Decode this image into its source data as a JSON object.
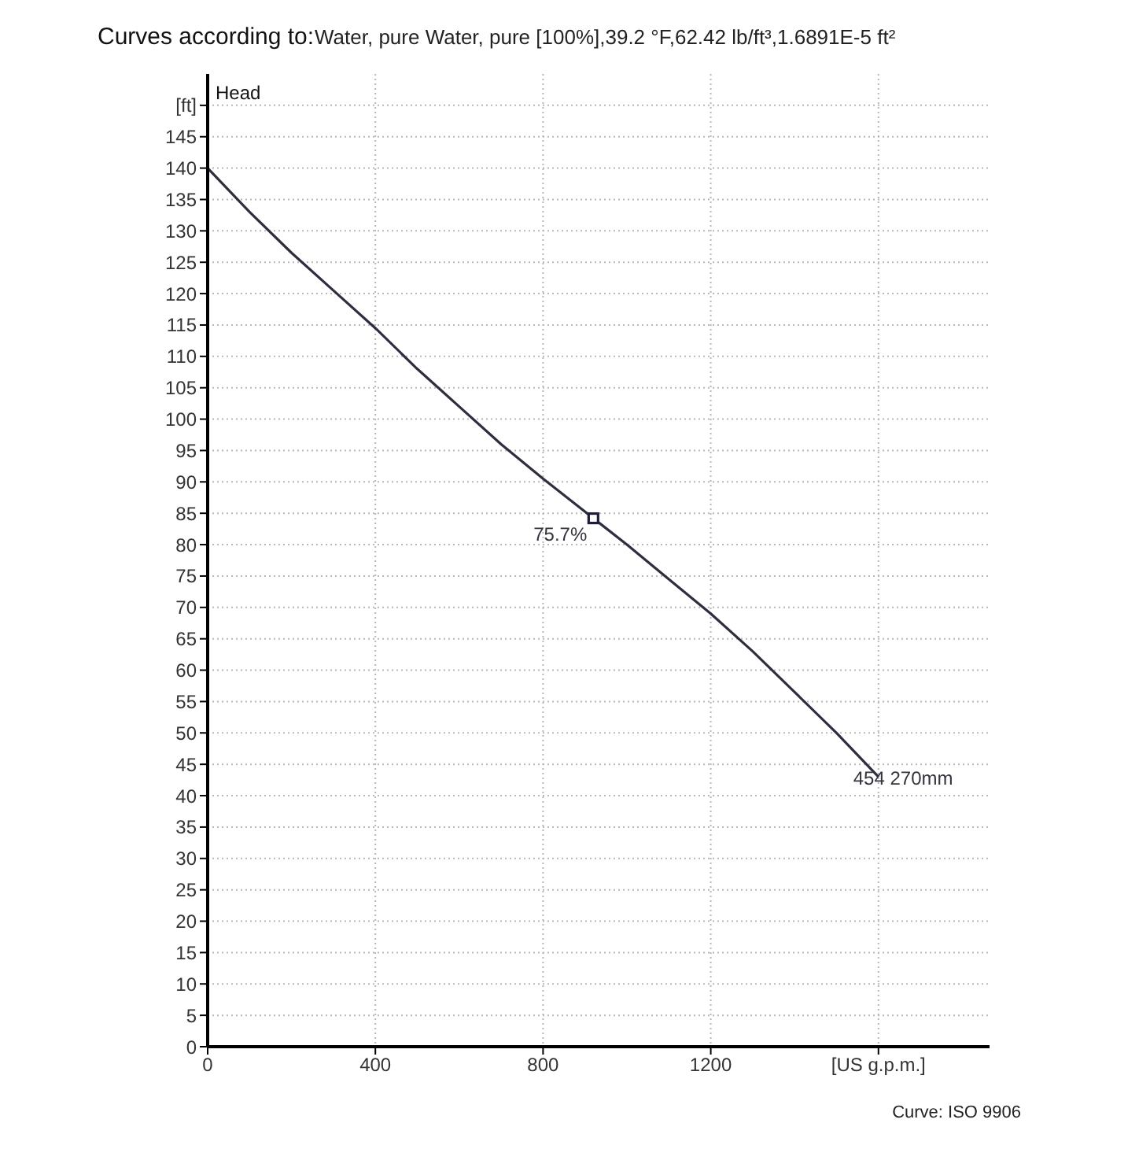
{
  "chart_data": {
    "type": "line",
    "title": "Curves according to:",
    "subtitle": "Water, pure Water, pure [100%],39.2 °F,62.42 lb/ft³,1.6891E-5 ft²",
    "ylabel": "Head",
    "xlim": [
      0,
      1865
    ],
    "xticks": [
      0,
      400,
      800,
      1200,
      {
        "value": 1600,
        "label": "[US g.p.m.]"
      }
    ],
    "ylim": [
      0,
      155
    ],
    "yticks": [
      0,
      5,
      10,
      15,
      20,
      25,
      30,
      35,
      40,
      45,
      50,
      55,
      60,
      65,
      70,
      75,
      80,
      85,
      90,
      95,
      100,
      105,
      110,
      115,
      120,
      125,
      130,
      135,
      140,
      145,
      {
        "value": 150,
        "label": "[ft]"
      }
    ],
    "grid": true,
    "series": [
      {
        "color": "#2e2e40",
        "marker": "none",
        "line_style": "solid",
        "x": [
          0,
          100,
          200,
          300,
          400,
          500,
          600,
          700,
          800,
          920,
          1000,
          1100,
          1200,
          1300,
          1400,
          1500,
          1600
        ],
        "values": [
          140,
          133,
          126.5,
          120.5,
          114.5,
          108,
          102,
          96,
          90.5,
          84.2,
          80,
          74.5,
          69,
          63,
          56.5,
          50,
          43
        ]
      },
      {
        "type": "scatter",
        "color": "#1c1c3c",
        "marker": "square",
        "x": [
          920
        ],
        "values": [
          84.2
        ]
      }
    ],
    "annotations": [
      {
        "text": "75.7%",
        "x": 920,
        "y": 84.2
      },
      {
        "text": "454 270mm",
        "x": 1600,
        "y": 43
      },
      "Curve: ISO 9906"
    ]
  }
}
